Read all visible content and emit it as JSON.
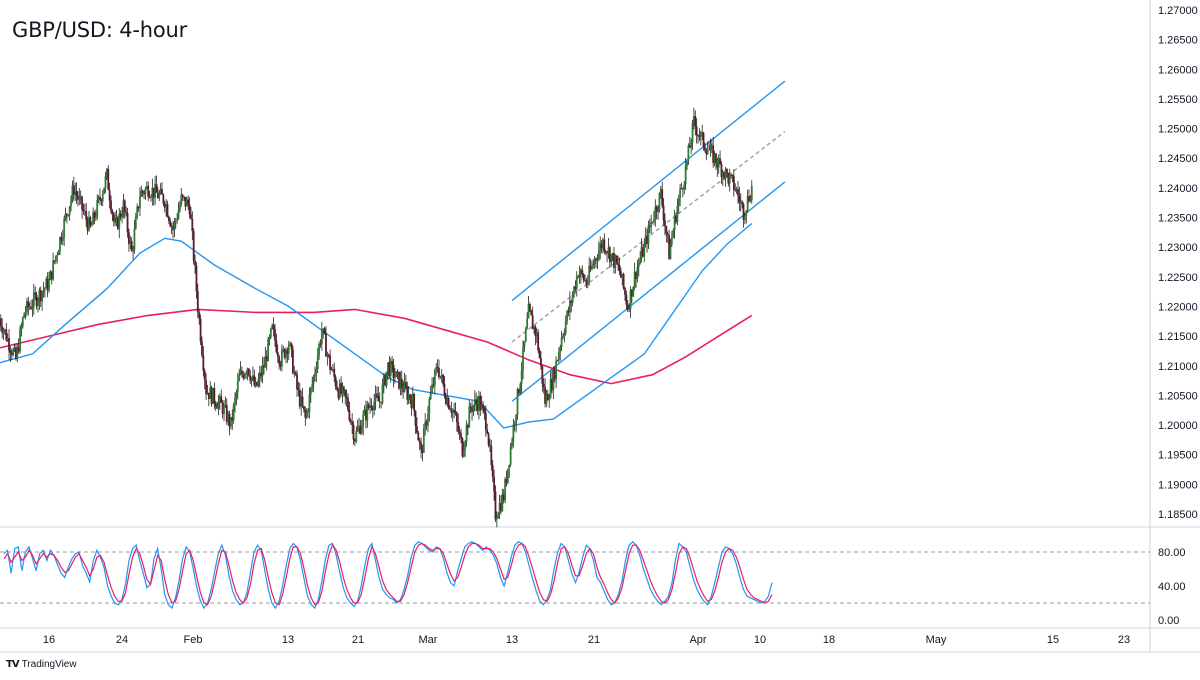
{
  "chart": {
    "title": "GBP/USD: 4-hour",
    "brand": "TradingView",
    "brand_logo": "TV"
  },
  "chart_data": [
    {
      "type": "candlestick",
      "title": "GBP/USD: 4-hour",
      "ylim": [
        1.1825,
        1.2705
      ],
      "y_ticks": [
        "1.27000",
        "1.26500",
        "1.26000",
        "1.25500",
        "1.25000",
        "1.24500",
        "1.24000",
        "1.23500",
        "1.23000",
        "1.22500",
        "1.22000",
        "1.21500",
        "1.21000",
        "1.20500",
        "1.20000",
        "1.19500",
        "1.19000",
        "1.18500"
      ],
      "x_ticks": [
        "16",
        "24",
        "Feb",
        "13",
        "21",
        "Mar",
        "13",
        "21",
        "Apr",
        "10",
        "18",
        "May",
        "15",
        "23"
      ],
      "grid": false,
      "colors": {
        "up": "#2e7d32",
        "down": "#5d1a2e",
        "fast_ma": "#2196f3",
        "slow_ma": "#e91e63",
        "channel": "#2196f3",
        "channel_mid": "#9e9e9e"
      },
      "price_anchors": [
        {
          "date": "Jan 10",
          "price": 1.218
        },
        {
          "date": "Jan 12",
          "price": 1.211
        },
        {
          "date": "Jan 13",
          "price": 1.219
        },
        {
          "date": "Jan 16",
          "price": 1.224
        },
        {
          "date": "Jan 18",
          "price": 1.235
        },
        {
          "date": "Jan 19",
          "price": 1.24
        },
        {
          "date": "Jan 21",
          "price": 1.233
        },
        {
          "date": "Jan 23",
          "price": 1.242
        },
        {
          "date": "Jan 24",
          "price": 1.233
        },
        {
          "date": "Jan 25",
          "price": 1.237
        },
        {
          "date": "Jan 26",
          "price": 1.229
        },
        {
          "date": "Jan 27",
          "price": 1.239
        },
        {
          "date": "Jan 28",
          "price": 1.24
        },
        {
          "date": "Jan 30",
          "price": 1.238
        },
        {
          "date": "Jan 31",
          "price": 1.233
        },
        {
          "date": "Feb 1",
          "price": 1.238
        },
        {
          "date": "Feb 2",
          "price": 1.237
        },
        {
          "date": "Feb 3",
          "price": 1.22
        },
        {
          "date": "Feb 4",
          "price": 1.206
        },
        {
          "date": "Feb 6",
          "price": 1.203
        },
        {
          "date": "Feb 7",
          "price": 1.2
        },
        {
          "date": "Feb 8",
          "price": 1.208
        },
        {
          "date": "Feb 9",
          "price": 1.21
        },
        {
          "date": "Feb 10",
          "price": 1.206
        },
        {
          "date": "Feb 11",
          "price": 1.21
        },
        {
          "date": "Feb 12",
          "price": 1.216
        },
        {
          "date": "Feb 13",
          "price": 1.211
        },
        {
          "date": "Feb 14",
          "price": 1.214
        },
        {
          "date": "Feb 15",
          "price": 1.206
        },
        {
          "date": "Feb 16",
          "price": 1.201
        },
        {
          "date": "Feb 17",
          "price": 1.208
        },
        {
          "date": "Feb 18",
          "price": 1.216
        },
        {
          "date": "Feb 19",
          "price": 1.21
        },
        {
          "date": "Feb 20",
          "price": 1.206
        },
        {
          "date": "Feb 21",
          "price": 1.204
        },
        {
          "date": "Feb 22",
          "price": 1.198
        },
        {
          "date": "Feb 24",
          "price": 1.204
        },
        {
          "date": "Feb 25",
          "price": 1.204
        },
        {
          "date": "Feb 26",
          "price": 1.21
        },
        {
          "date": "Feb 28",
          "price": 1.206
        },
        {
          "date": "Mar 1",
          "price": 1.204
        },
        {
          "date": "Mar 2",
          "price": 1.195
        },
        {
          "date": "Mar 3",
          "price": 1.204
        },
        {
          "date": "Mar 4",
          "price": 1.21
        },
        {
          "date": "Mar 5",
          "price": 1.205
        },
        {
          "date": "Mar 6",
          "price": 1.202
        },
        {
          "date": "Mar 7",
          "price": 1.196
        },
        {
          "date": "Mar 8",
          "price": 1.203
        },
        {
          "date": "Mar 9",
          "price": 1.204
        },
        {
          "date": "Mar 10",
          "price": 1.2
        },
        {
          "date": "Mar 11",
          "price": 1.185
        },
        {
          "date": "Mar 12",
          "price": 1.188
        },
        {
          "date": "Mar 13",
          "price": 1.198
        },
        {
          "date": "Mar 14",
          "price": 1.208
        },
        {
          "date": "Mar 15",
          "price": 1.219
        },
        {
          "date": "Mar 16",
          "price": 1.215
        },
        {
          "date": "Mar 17",
          "price": 1.204
        },
        {
          "date": "Mar 18",
          "price": 1.208
        },
        {
          "date": "Mar 19",
          "price": 1.215
        },
        {
          "date": "Mar 20",
          "price": 1.22
        },
        {
          "date": "Mar 21",
          "price": 1.226
        },
        {
          "date": "Mar 22",
          "price": 1.224
        },
        {
          "date": "Mar 23",
          "price": 1.228
        },
        {
          "date": "Mar 24",
          "price": 1.231
        },
        {
          "date": "Mar 26",
          "price": 1.226
        },
        {
          "date": "Mar 27",
          "price": 1.22
        },
        {
          "date": "Mar 28",
          "price": 1.226
        },
        {
          "date": "Mar 29",
          "price": 1.23
        },
        {
          "date": "Mar 30",
          "price": 1.235
        },
        {
          "date": "Mar 31",
          "price": 1.239
        },
        {
          "date": "Apr 1",
          "price": 1.229
        },
        {
          "date": "Apr 2",
          "price": 1.237
        },
        {
          "date": "Apr 3",
          "price": 1.243
        },
        {
          "date": "Apr 4",
          "price": 1.251
        },
        {
          "date": "Apr 5",
          "price": 1.248
        },
        {
          "date": "Apr 6",
          "price": 1.246
        },
        {
          "date": "Apr 7",
          "price": 1.244
        },
        {
          "date": "Apr 8",
          "price": 1.242
        },
        {
          "date": "Apr 9",
          "price": 1.24
        },
        {
          "date": "Apr 10",
          "price": 1.236
        },
        {
          "date": "Apr 11",
          "price": 1.24
        }
      ],
      "fast_ma": [
        {
          "date": "Jan 10",
          "value": 1.2105
        },
        {
          "date": "Jan 14",
          "value": 1.212
        },
        {
          "date": "Jan 18",
          "value": 1.217
        },
        {
          "date": "Jan 23",
          "value": 1.223
        },
        {
          "date": "Jan 27",
          "value": 1.229
        },
        {
          "date": "Jan 30",
          "value": 1.2315
        },
        {
          "date": "Feb 1",
          "value": 1.231
        },
        {
          "date": "Feb 5",
          "value": 1.227
        },
        {
          "date": "Feb 10",
          "value": 1.223
        },
        {
          "date": "Feb 14",
          "value": 1.22
        },
        {
          "date": "Feb 18",
          "value": 1.216
        },
        {
          "date": "Feb 22",
          "value": 1.212
        },
        {
          "date": "Feb 26",
          "value": 1.208
        },
        {
          "date": "Mar 1",
          "value": 1.206
        },
        {
          "date": "Mar 5",
          "value": 1.205
        },
        {
          "date": "Mar 9",
          "value": 1.204
        },
        {
          "date": "Mar 12",
          "value": 1.1995
        },
        {
          "date": "Mar 15",
          "value": 1.2005
        },
        {
          "date": "Mar 18",
          "value": 1.201
        },
        {
          "date": "Mar 21",
          "value": 1.204
        },
        {
          "date": "Mar 25",
          "value": 1.208
        },
        {
          "date": "Mar 29",
          "value": 1.212
        },
        {
          "date": "Apr 2",
          "value": 1.22
        },
        {
          "date": "Apr 5",
          "value": 1.226
        },
        {
          "date": "Apr 8",
          "value": 1.2305
        },
        {
          "date": "Apr 11",
          "value": 1.234
        }
      ],
      "slow_ma": [
        {
          "date": "Jan 10",
          "value": 1.213
        },
        {
          "date": "Jan 16",
          "value": 1.215
        },
        {
          "date": "Jan 22",
          "value": 1.217
        },
        {
          "date": "Jan 28",
          "value": 1.2185
        },
        {
          "date": "Feb 3",
          "value": 1.2195
        },
        {
          "date": "Feb 10",
          "value": 1.219
        },
        {
          "date": "Feb 17",
          "value": 1.219
        },
        {
          "date": "Feb 22",
          "value": 1.2195
        },
        {
          "date": "Feb 28",
          "value": 1.218
        },
        {
          "date": "Mar 5",
          "value": 1.216
        },
        {
          "date": "Mar 10",
          "value": 1.214
        },
        {
          "date": "Mar 15",
          "value": 1.211
        },
        {
          "date": "Mar 20",
          "value": 1.2085
        },
        {
          "date": "Mar 25",
          "value": 1.207
        },
        {
          "date": "Mar 30",
          "value": 1.2085
        },
        {
          "date": "Apr 3",
          "value": 1.2115
        },
        {
          "date": "Apr 7",
          "value": 1.215
        },
        {
          "date": "Apr 11",
          "value": 1.2185
        }
      ],
      "channel": {
        "upper": [
          {
            "date": "Mar 13",
            "value": 1.221
          },
          {
            "date": "Apr 15",
            "value": 1.258
          }
        ],
        "middle": [
          {
            "date": "Mar 13",
            "value": 1.214
          },
          {
            "date": "Apr 15",
            "value": 1.2495
          }
        ],
        "lower": [
          {
            "date": "Mar 13",
            "value": 1.204
          },
          {
            "date": "Apr 15",
            "value": 1.241
          }
        ]
      }
    },
    {
      "type": "line",
      "title": "",
      "ylim": [
        0,
        100
      ],
      "y_ticks": [
        "80.00",
        "40.00",
        "0.00"
      ],
      "reference_lines": [
        80,
        20
      ],
      "series": [
        {
          "color": "#2196f3",
          "values": [
            78,
            82,
            55,
            84,
            86,
            58,
            80,
            86,
            72,
            58,
            78,
            82,
            70,
            82,
            76,
            65,
            55,
            50,
            62,
            72,
            78,
            80,
            64,
            55,
            45,
            70,
            82,
            74,
            62,
            40,
            28,
            20,
            18,
            24,
            42,
            70,
            84,
            88,
            70,
            55,
            38,
            42,
            72,
            84,
            60,
            30,
            18,
            14,
            26,
            46,
            72,
            86,
            80,
            60,
            38,
            22,
            14,
            20,
            36,
            58,
            78,
            88,
            76,
            52,
            34,
            24,
            18,
            20,
            32,
            56,
            80,
            88,
            82,
            58,
            36,
            20,
            14,
            22,
            40,
            64,
            84,
            90,
            86,
            70,
            48,
            28,
            18,
            14,
            24,
            46,
            72,
            88,
            90,
            76,
            56,
            38,
            26,
            20,
            16,
            22,
            40,
            64,
            84,
            90,
            70,
            50,
            36,
            30,
            26,
            24,
            20,
            24,
            36,
            52,
            74,
            88,
            92,
            90,
            86,
            82,
            80,
            86,
            84,
            72,
            56,
            44,
            40,
            58,
            72,
            86,
            90,
            92,
            90,
            86,
            82,
            86,
            82,
            76,
            66,
            50,
            40,
            56,
            74,
            88,
            92,
            90,
            80,
            64,
            48,
            34,
            22,
            18,
            24,
            36,
            60,
            80,
            90,
            86,
            70,
            54,
            44,
            56,
            74,
            88,
            84,
            70,
            50,
            44,
            34,
            24,
            18,
            20,
            30,
            46,
            70,
            88,
            92,
            88,
            76,
            60,
            48,
            36,
            28,
            22,
            18,
            22,
            28,
            44,
            72,
            90,
            86,
            80,
            64,
            48,
            36,
            28,
            22,
            18,
            28,
            44,
            62,
            80,
            86,
            84,
            78,
            66,
            50,
            36,
            28,
            26,
            24,
            22,
            20,
            22,
            28,
            44
          ]
        },
        {
          "color": "#e91e63",
          "values": [
            72,
            78,
            68,
            74,
            80,
            70,
            74,
            82,
            76,
            66,
            72,
            78,
            74,
            78,
            76,
            70,
            62,
            56,
            58,
            66,
            74,
            78,
            70,
            62,
            52,
            60,
            74,
            76,
            68,
            52,
            38,
            28,
            22,
            22,
            32,
            54,
            74,
            84,
            78,
            64,
            48,
            42,
            58,
            76,
            70,
            48,
            30,
            20,
            22,
            36,
            58,
            78,
            82,
            70,
            50,
            32,
            20,
            18,
            28,
            46,
            66,
            82,
            80,
            64,
            46,
            32,
            24,
            20,
            26,
            42,
            66,
            82,
            84,
            70,
            50,
            32,
            20,
            18,
            30,
            50,
            72,
            86,
            86,
            78,
            60,
            40,
            26,
            18,
            20,
            34,
            58,
            78,
            88,
            82,
            68,
            50,
            36,
            26,
            20,
            20,
            30,
            50,
            72,
            86,
            78,
            62,
            46,
            36,
            30,
            26,
            22,
            22,
            30,
            44,
            62,
            80,
            88,
            90,
            88,
            84,
            82,
            84,
            84,
            78,
            66,
            54,
            46,
            50,
            62,
            76,
            86,
            90,
            90,
            88,
            84,
            84,
            84,
            80,
            72,
            60,
            48,
            50,
            64,
            80,
            88,
            90,
            86,
            74,
            60,
            46,
            32,
            24,
            22,
            30,
            46,
            68,
            84,
            86,
            78,
            64,
            52,
            52,
            64,
            78,
            84,
            78,
            62,
            50,
            42,
            32,
            24,
            20,
            26,
            38,
            58,
            78,
            88,
            88,
            82,
            70,
            58,
            46,
            36,
            28,
            22,
            20,
            24,
            36,
            56,
            78,
            86,
            84,
            74,
            60,
            46,
            36,
            28,
            22,
            24,
            34,
            50,
            68,
            80,
            84,
            82,
            74,
            62,
            48,
            36,
            30,
            26,
            24,
            22,
            20,
            22,
            30
          ]
        }
      ]
    }
  ]
}
